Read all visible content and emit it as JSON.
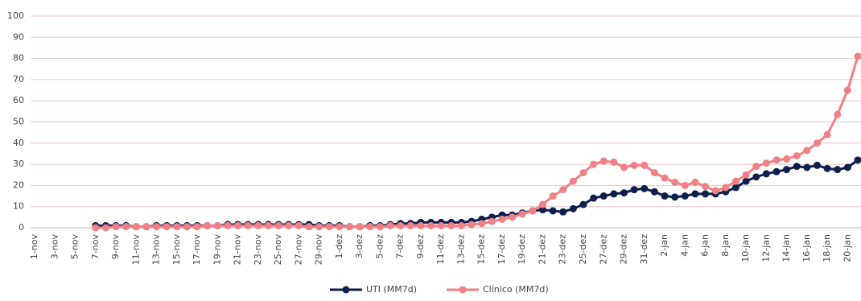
{
  "chart_data": {
    "type": "line",
    "categories": [
      "1-nov",
      null,
      "3-nov",
      null,
      "5-nov",
      null,
      "7-nov",
      null,
      "9-nov",
      null,
      "11-nov",
      null,
      "13-nov",
      null,
      "15-nov",
      null,
      "17-nov",
      null,
      "19-nov",
      null,
      "21-nov",
      null,
      "23-nov",
      null,
      "25-nov",
      null,
      "27-nov",
      null,
      "29-nov",
      null,
      "1-dez",
      null,
      "3-dez",
      null,
      "5-dez",
      null,
      "7-dez",
      null,
      "9-dez",
      null,
      "11-dez",
      null,
      "13-dez",
      null,
      "15-dez",
      null,
      "17-dez",
      null,
      "19-dez",
      null,
      "21-dez",
      null,
      "23-dez",
      null,
      "25-dez",
      null,
      "27-dez",
      null,
      "29-dez",
      null,
      "31-dez",
      null,
      "2-jan",
      null,
      "4-jan",
      null,
      "6-jan",
      null,
      "8-jan",
      null,
      "10-jan",
      null,
      "12-jan",
      null,
      "14-jan",
      null,
      "16-jan",
      null,
      "18-jan",
      null,
      "20-jan",
      null
    ],
    "series": [
      {
        "name": "UTI (MM7d)",
        "color": "#0d1f4d",
        "values": [
          null,
          null,
          null,
          null,
          null,
          null,
          1,
          1,
          1,
          1,
          0.5,
          0.5,
          1,
          1,
          1,
          1,
          1,
          1,
          1,
          1.5,
          1.5,
          1.5,
          1.5,
          1.5,
          1.5,
          1.5,
          1.5,
          1.5,
          1,
          1,
          1,
          0.5,
          0.5,
          1,
          1,
          1.5,
          2,
          2,
          2.5,
          2.5,
          2.5,
          2.5,
          2.5,
          3,
          4,
          5,
          6,
          6,
          7,
          8,
          8.5,
          8,
          7.5,
          9,
          11,
          14,
          15,
          16,
          16.5,
          18,
          18.5,
          17,
          15,
          14.5,
          15,
          16,
          16,
          16,
          17,
          19,
          22,
          24,
          25.5,
          26.5,
          27.5,
          29,
          28.5,
          29.5,
          28,
          27.5,
          28.5,
          32
        ]
      },
      {
        "name": "Clínico (MM7d)",
        "color": "#f07f86",
        "values": [
          null,
          null,
          null,
          null,
          null,
          null,
          0,
          0,
          0.5,
          0.5,
          0.5,
          0.5,
          0.5,
          0.5,
          0.5,
          0.5,
          0.5,
          1,
          1,
          1,
          1,
          1,
          1,
          1,
          1,
          1,
          1,
          0.5,
          0.5,
          0.5,
          0.5,
          0.5,
          0.5,
          0.5,
          0.5,
          1,
          1,
          1,
          1,
          1,
          1,
          1,
          1,
          1.5,
          2,
          3,
          4,
          5,
          6.5,
          8,
          11,
          15,
          18,
          22,
          26,
          30,
          31.5,
          31,
          28.5,
          29.5,
          29.5,
          26,
          23.5,
          21.5,
          20,
          21.5,
          19.5,
          17.5,
          19,
          22,
          25,
          29,
          30.5,
          32,
          32.5,
          34,
          36.5,
          40,
          44,
          53.5,
          65,
          81
        ]
      }
    ],
    "ylim": [
      0,
      100
    ],
    "yticks": [
      0,
      10,
      20,
      30,
      40,
      50,
      60,
      70,
      80,
      90,
      100
    ],
    "grid": true,
    "legend": "bottom"
  }
}
